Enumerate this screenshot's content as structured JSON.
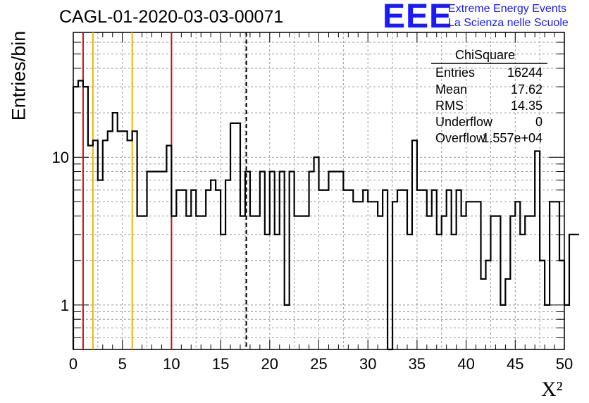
{
  "header": {
    "title": "CAGL-01-2020-03-03-00071",
    "logo_text": "EEE",
    "logo_line1": "Extreme Energy Events",
    "logo_line2": "La Scienza nelle Scuole"
  },
  "stats_box": {
    "title": "ChiSquare",
    "rows": [
      {
        "key": "Entries",
        "value": "16244"
      },
      {
        "key": "Mean",
        "value": "17.62"
      },
      {
        "key": "RMS",
        "value": "14.35"
      },
      {
        "key": "Underflow",
        "value": "0"
      },
      {
        "key": "Overflow",
        "value": "1.557e+04"
      }
    ]
  },
  "colors": {
    "histogram": "#000000",
    "red_line": "#cc1111",
    "yellow_line": "#f0b400",
    "grid": "#999999"
  },
  "chart_data": {
    "type": "histogram",
    "title": "CAGL-01-2020-03-03-00071",
    "xlabel": "X²",
    "ylabel": "Entries/bin",
    "y_scale": "log",
    "xlim": [
      0,
      50
    ],
    "ylim": [
      0.5,
      70
    ],
    "x_ticks": [
      0,
      5,
      10,
      15,
      20,
      25,
      30,
      35,
      40,
      45,
      50
    ],
    "y_ticks": [
      1,
      10
    ],
    "bin_width": 0.5,
    "values": [
      30,
      33,
      30,
      12,
      13,
      7,
      13,
      15,
      20,
      15,
      15,
      13,
      15,
      4,
      4,
      8,
      8,
      8,
      8,
      12,
      4,
      6,
      6,
      4,
      6,
      4,
      4,
      6,
      7,
      6,
      3,
      7,
      17,
      17,
      4,
      8,
      4,
      4,
      8,
      3,
      8,
      3,
      8,
      1,
      8,
      4,
      4,
      4,
      8,
      10,
      6,
      6,
      8,
      8,
      8,
      6,
      6,
      5,
      5,
      6,
      5,
      5,
      4,
      6,
      0.4,
      5,
      6,
      6,
      3,
      13,
      6,
      6,
      4,
      6,
      3,
      4,
      6,
      3,
      6,
      4,
      5,
      5,
      5,
      1.5,
      2,
      4,
      4,
      1,
      1.5,
      4,
      5,
      3,
      4,
      4,
      11,
      2,
      1,
      5,
      5,
      2,
      1,
      3,
      3
    ],
    "vertical_lines": [
      {
        "x": 1,
        "color": "red"
      },
      {
        "x": 2,
        "color": "yellow"
      },
      {
        "x": 6,
        "color": "yellow"
      },
      {
        "x": 10,
        "color": "red"
      },
      {
        "x": 17.62,
        "color": "black",
        "style": "dashed"
      }
    ],
    "grid": true
  }
}
